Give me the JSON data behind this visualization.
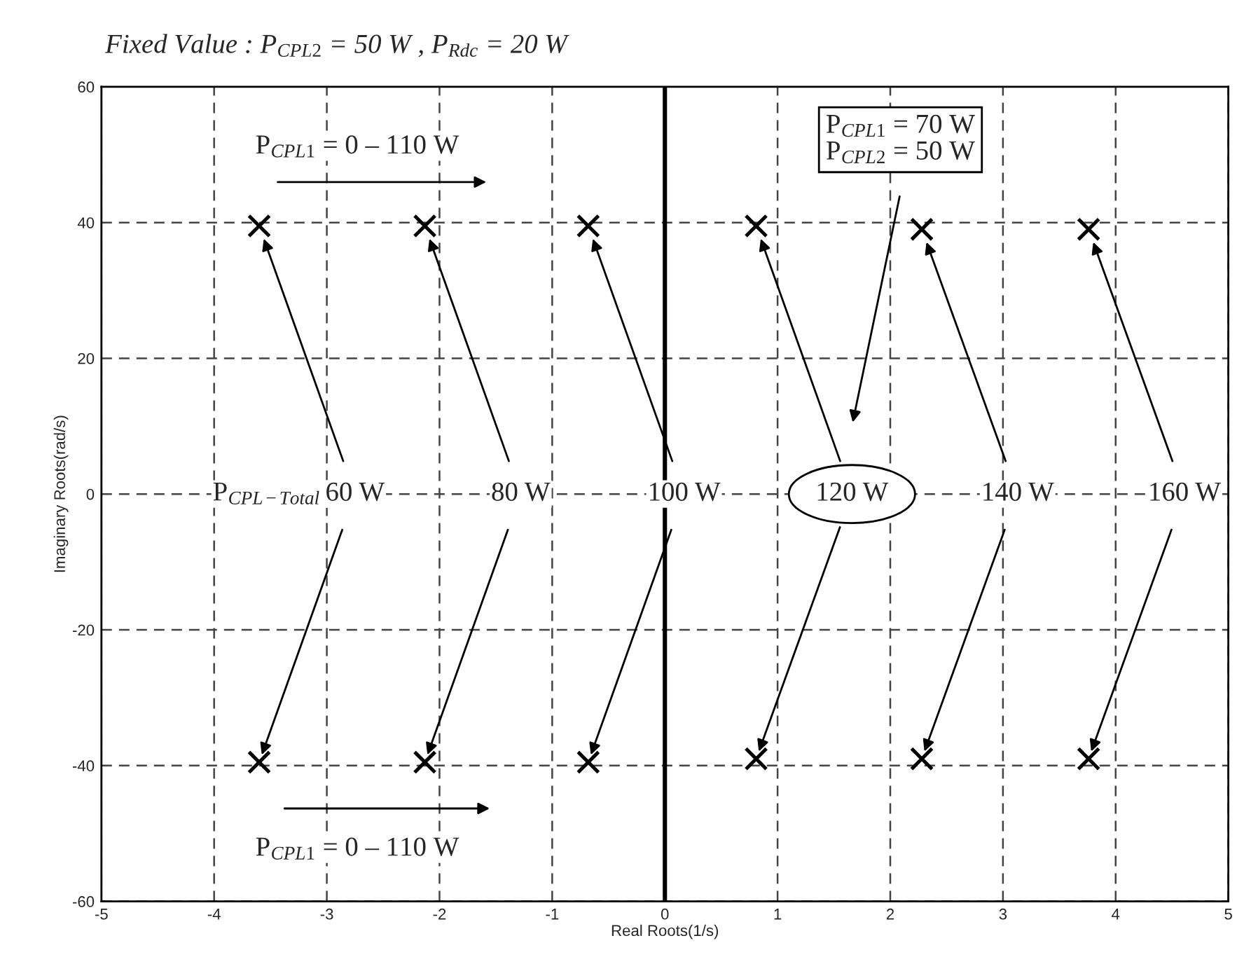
{
  "chart_data": {
    "type": "scatter",
    "xlabel": "Real Roots(1/s)",
    "ylabel": "Imaginary Roots(rad/s)",
    "x": [
      -3.6,
      -2.13,
      -0.68,
      0.81,
      2.28,
      3.76
    ],
    "series": [
      {
        "color": "#000000",
        "values": [
          39.5,
          39.5,
          39.5,
          39.5,
          39,
          39
        ]
      },
      {
        "color": "#000000",
        "values": [
          -39.5,
          -39.5,
          -39.5,
          -39,
          -39,
          -39
        ]
      }
    ],
    "marker": "cross",
    "xlim": [
      -5,
      5
    ],
    "ylim": [
      -60,
      60
    ],
    "xticks": [
      -5,
      -4,
      -3,
      -2,
      -1,
      0,
      1,
      2,
      3,
      4,
      5
    ],
    "yticks": [
      -60,
      -40,
      -20,
      0,
      20,
      40,
      60
    ],
    "grid": true,
    "ref_lines": [
      {
        "axis": "x",
        "value": 0,
        "color": "#000000"
      }
    ],
    "annotations": [
      "Fixed Value : P$_{CPL2}$ = 50 W , P$_{Rdc}$ = 20 W",
      "P$_{CPL1}$ = 0 – 110 W",
      "P$_{CPL1}$ = 0 – 110 W",
      "P$_{CPL1}$ = 70 W\nP$_{CPL2}$ = 50 W",
      "P$_{CPL−Total}$ =",
      {
        "text": "60 W",
        "x": -3.6,
        "y": -39.5
      },
      {
        "text": "80 W",
        "x": -2.13,
        "y": -39.5
      },
      {
        "text": "100 W",
        "x": -0.68,
        "y": -39.5
      },
      {
        "text": "120 W",
        "x": 0.81,
        "y": -39
      },
      {
        "text": "140 W",
        "x": 2.28,
        "y": -39
      },
      {
        "text": "160 W",
        "x": 3.76,
        "y": -39
      }
    ]
  }
}
